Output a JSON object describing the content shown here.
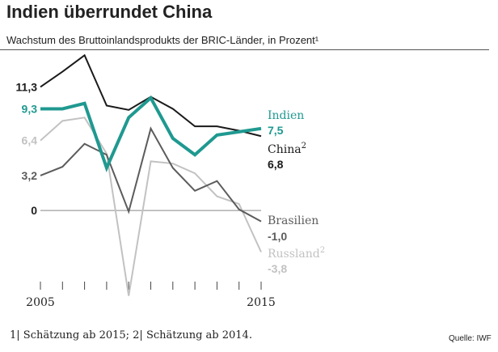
{
  "title": "Indien überrundet China",
  "subtitle": "Wachstum des Bruttoinlandsprodukts der BRIC-Länder, in Prozent¹",
  "footnote": "1| Schätzung ab 2015; 2| Schätzung ab 2014.",
  "source": "Quelle: IWF",
  "chart_data": {
    "type": "line",
    "x": [
      2005,
      2006,
      2007,
      2008,
      2009,
      2010,
      2011,
      2012,
      2013,
      2014,
      2015
    ],
    "ylim": [
      -8.5,
      14
    ],
    "x_tick_labels": [
      {
        "year": 2005,
        "label": "2005"
      },
      {
        "year": 2015,
        "label": "2015"
      }
    ],
    "series": [
      {
        "name": "China",
        "label": "China",
        "superscript": "2",
        "color": "#1a1a1a",
        "width": 2,
        "values": [
          11.3,
          12.7,
          14.2,
          9.6,
          9.2,
          10.4,
          9.3,
          7.7,
          7.7,
          7.3,
          6.8
        ],
        "start_label": "11,3",
        "end_label": "6,8"
      },
      {
        "name": "Indien",
        "label": "Indien",
        "superscript": "",
        "color": "#1f9990",
        "width": 4,
        "values": [
          9.3,
          9.3,
          9.8,
          3.9,
          8.5,
          10.3,
          6.6,
          5.1,
          6.9,
          7.2,
          7.5
        ],
        "start_label": "9,3",
        "end_label": "7,5"
      },
      {
        "name": "Russland",
        "label": "Russland",
        "superscript": "2",
        "color": "#c2c2c2",
        "width": 2,
        "values": [
          6.4,
          8.2,
          8.5,
          5.2,
          -7.8,
          4.5,
          4.3,
          3.4,
          1.3,
          0.6,
          -3.8
        ],
        "start_label": "6,4",
        "end_label": "-3,8"
      },
      {
        "name": "Brasilien",
        "label": "Brasilien",
        "superscript": "",
        "color": "#5c5c5c",
        "width": 2,
        "values": [
          3.2,
          4.0,
          6.1,
          5.1,
          -0.1,
          7.5,
          3.9,
          1.8,
          2.7,
          0.1,
          -1.0
        ],
        "start_label": "3,2",
        "end_label": "-1,0"
      }
    ],
    "zero_label": "0"
  }
}
